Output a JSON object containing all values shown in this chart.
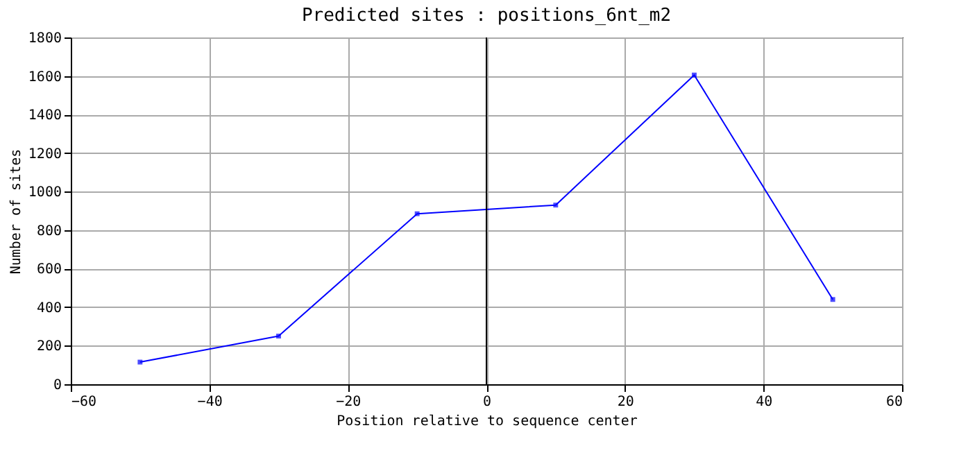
{
  "chart_data": {
    "type": "line",
    "title": "Predicted sites : positions_6nt_m2",
    "xlabel": "Position relative to sequence center",
    "ylabel": "Number of sites",
    "x": [
      -50,
      -30,
      -10,
      10,
      30,
      50
    ],
    "series": [
      {
        "color": "#0000ff",
        "values": [
          115,
          250,
          885,
          930,
          1605,
          440
        ]
      }
    ],
    "xlim": [
      -60,
      60
    ],
    "xticks": [
      -60,
      -40,
      -20,
      0,
      20,
      40,
      60
    ],
    "ylim": [
      0,
      1800
    ],
    "yticks": [
      0,
      200,
      400,
      600,
      800,
      1000,
      1200,
      1400,
      1600,
      1800
    ],
    "grid": true,
    "marker": "square",
    "line_style": "solid",
    "ref_lines": [
      {
        "axis": "x",
        "value": 0,
        "color": "#000000"
      }
    ]
  }
}
